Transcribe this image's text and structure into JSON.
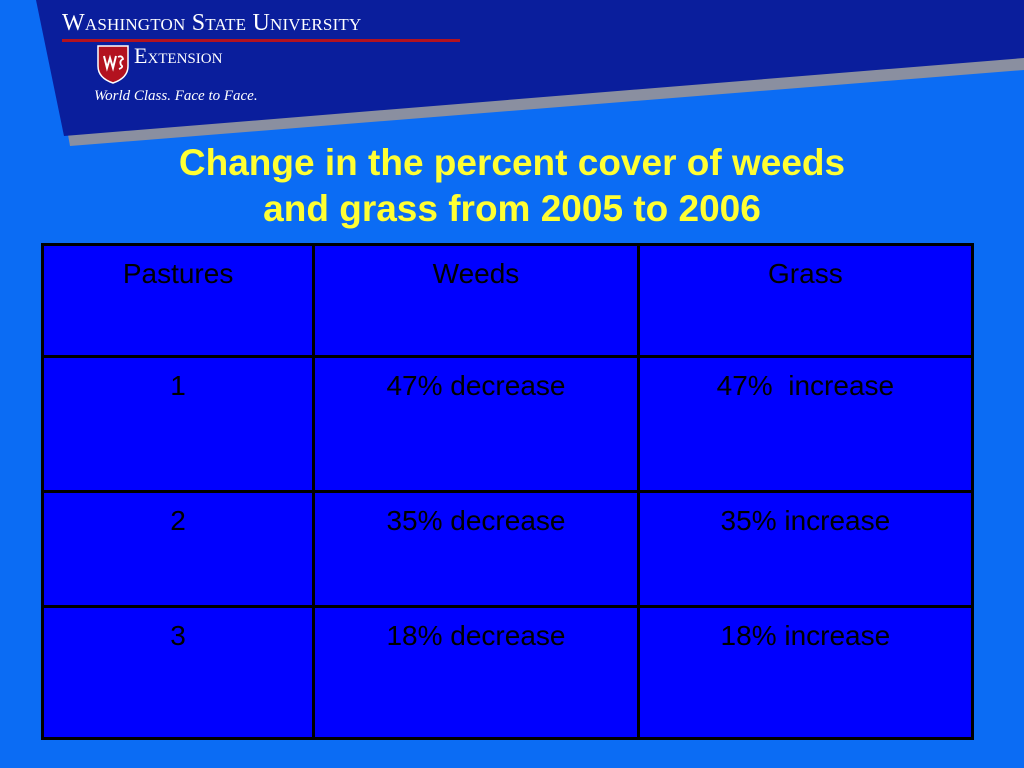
{
  "logo": {
    "university": "Washington State University",
    "unit": "Extension",
    "tagline": "World Class. Face to Face."
  },
  "title": {
    "line1": "Change in the percent cover of weeds",
    "line2": "and grass from 2005 to 2006"
  },
  "table": {
    "headers": [
      "Pastures",
      "Weeds",
      "Grass"
    ],
    "rows": [
      [
        "1",
        "47% decrease",
        "47%  increase"
      ],
      [
        "2",
        "35% decrease",
        "35% increase"
      ],
      [
        "3",
        "18% decrease",
        "18% increase"
      ]
    ]
  },
  "colors": {
    "background": "#0b6cf4",
    "banner": "#0a1e9c",
    "title": "#ffff33",
    "table_fill": "#0000ff",
    "logo_accent": "#b3121f"
  }
}
